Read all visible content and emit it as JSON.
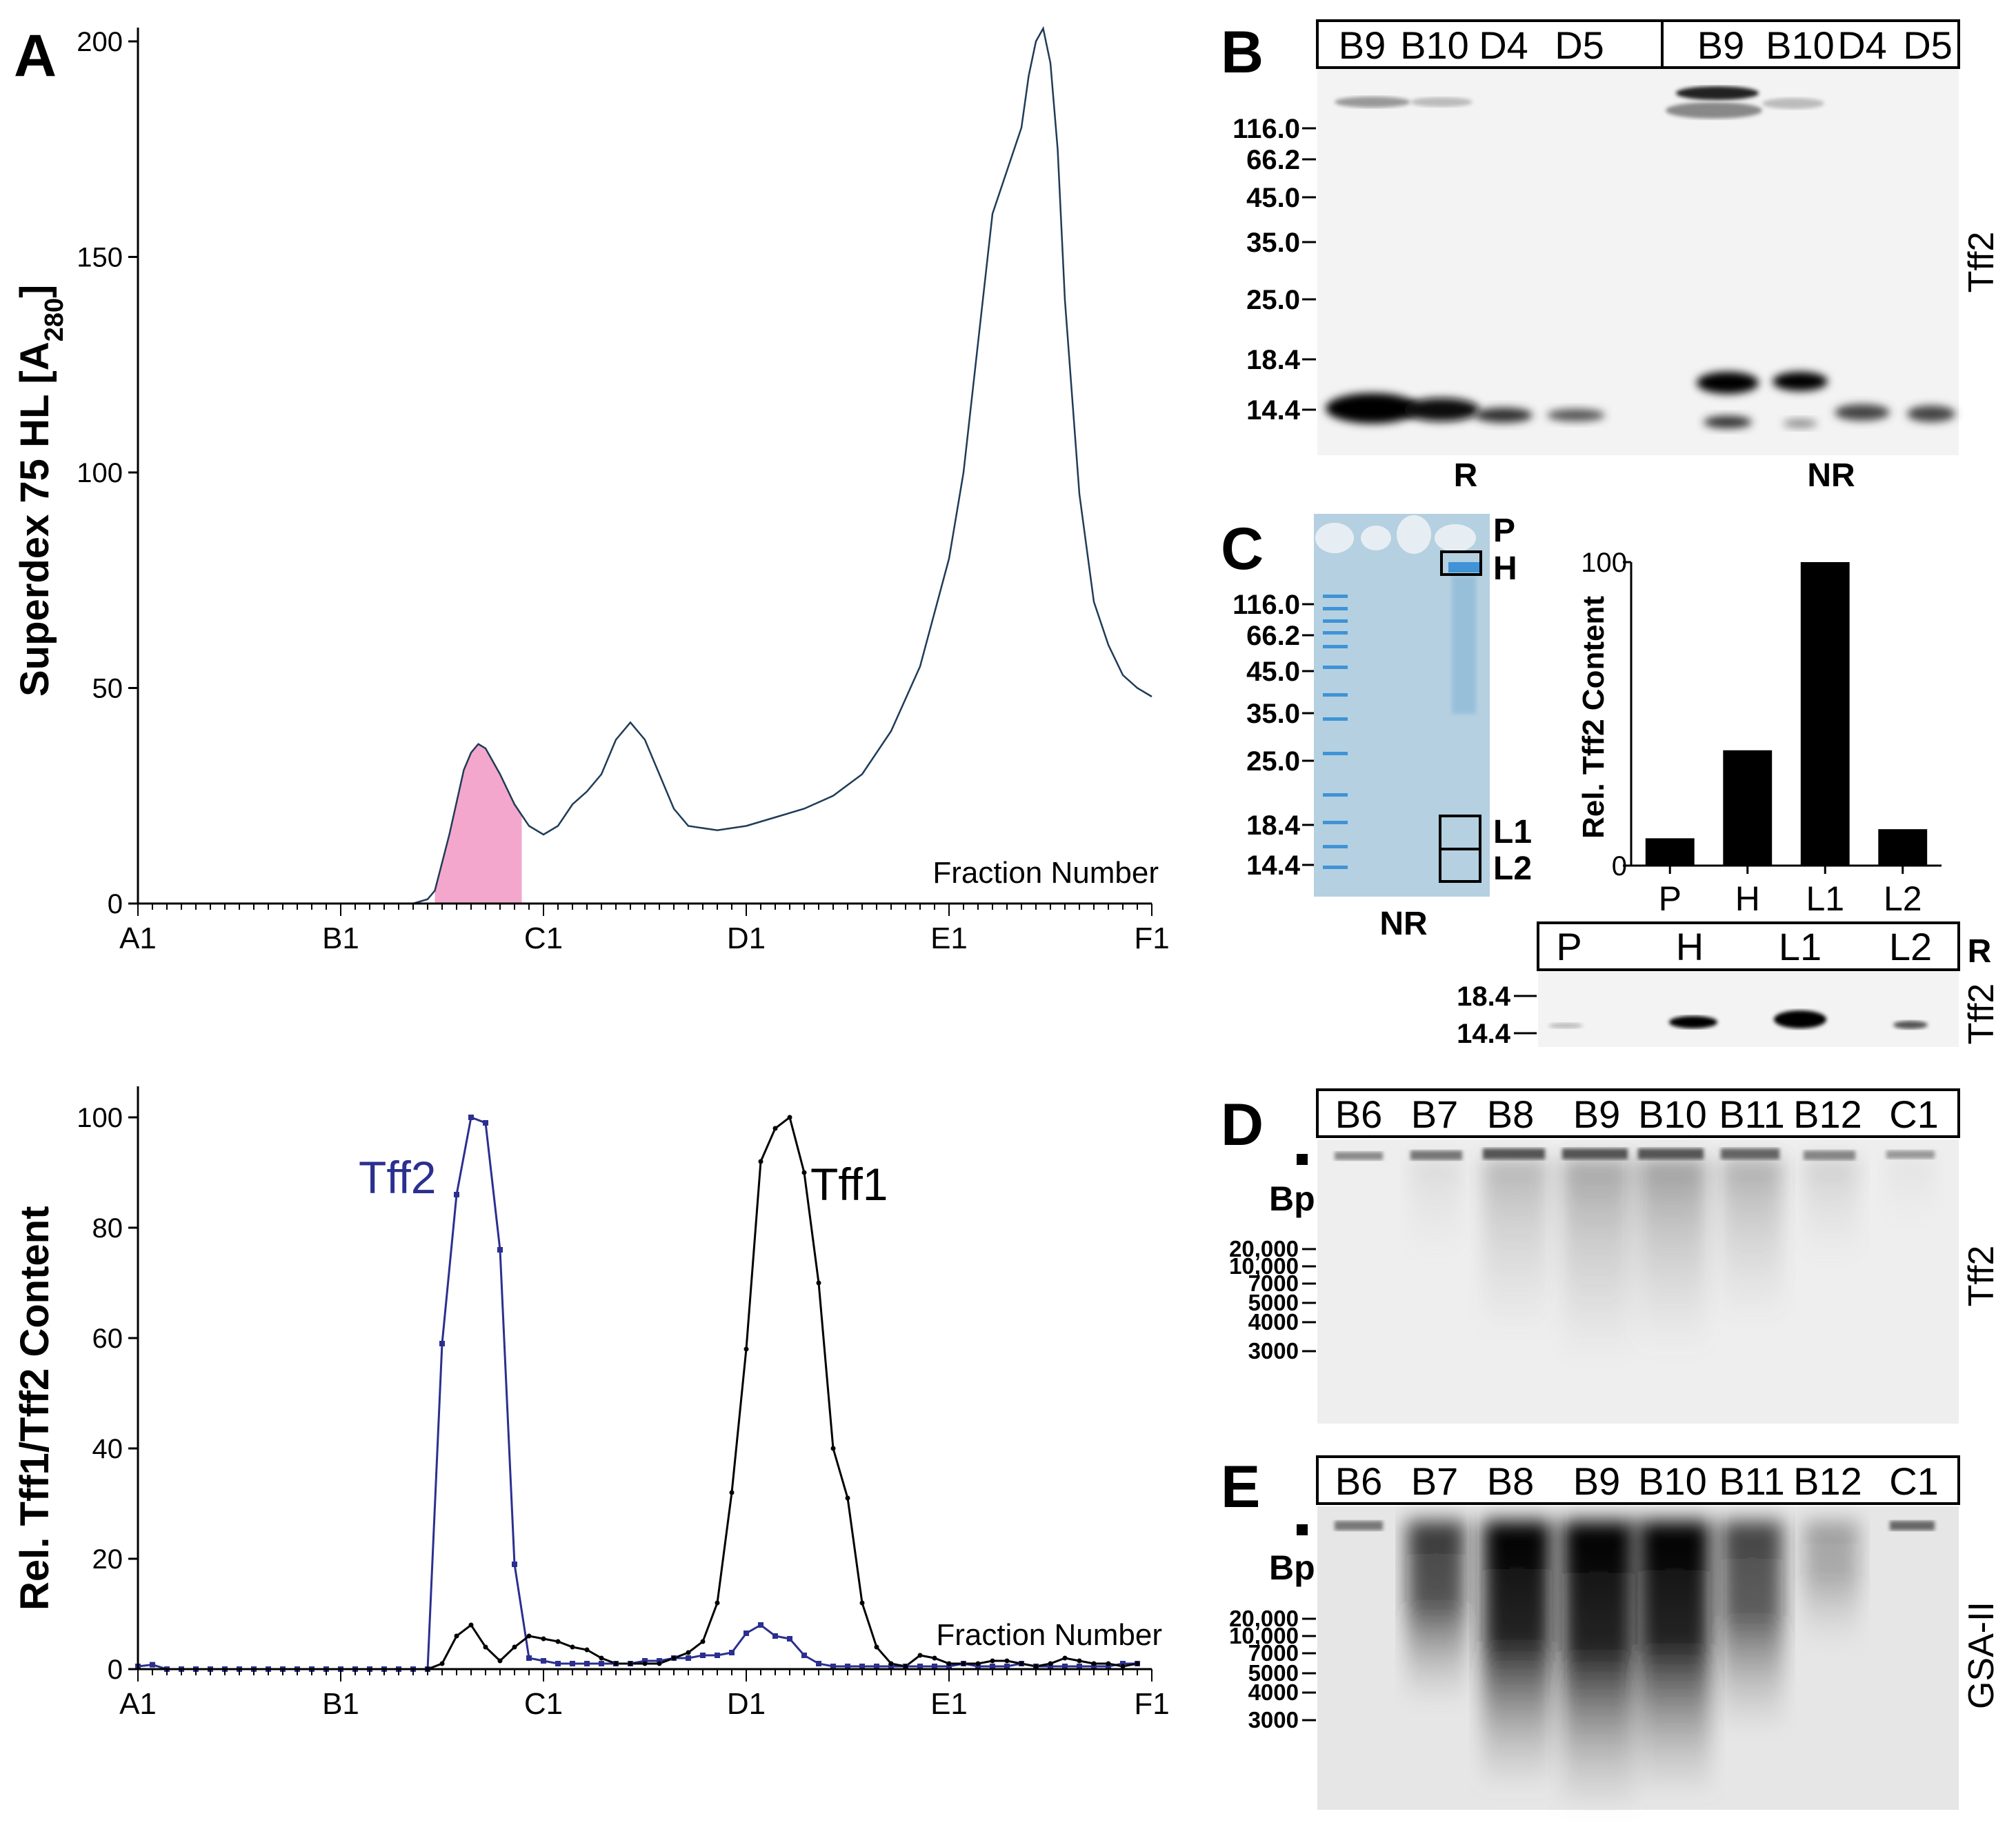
{
  "panel_labels": {
    "a": "A",
    "b": "B",
    "c": "C",
    "d": "D",
    "e": "E"
  },
  "colors": {
    "profile_line": "#1f3b57",
    "shaded": "#f4a7cc",
    "tff2": "#2b2f8f",
    "tff1": "#000000"
  },
  "chart_data": [
    {
      "type": "area",
      "panel": "A-top",
      "title": "",
      "xlabel": "Fraction Number",
      "ylabel": "Superdex 75 HL [A",
      "ylabel_sub": "280",
      "ylabel_end": "]",
      "x_domain": [
        0,
        70
      ],
      "ylim": [
        0,
        200
      ],
      "yticks": [
        "0",
        "50",
        "100",
        "150",
        "200"
      ],
      "xticks": [
        {
          "pos": 0,
          "label": "A1"
        },
        {
          "pos": 14,
          "label": "B1"
        },
        {
          "pos": 28,
          "label": "C1"
        },
        {
          "pos": 42,
          "label": "D1"
        },
        {
          "pos": 56,
          "label": "E1"
        },
        {
          "pos": 70,
          "label": "F1"
        }
      ],
      "shaded_range": [
        20.5,
        26.5
      ],
      "x": [
        0,
        19,
        20,
        20.5,
        21.5,
        22.5,
        23,
        23.5,
        24,
        25,
        26,
        27,
        28,
        29,
        30,
        31,
        32,
        33,
        34,
        35,
        36,
        37,
        38,
        40,
        42,
        44,
        46,
        48,
        50,
        52,
        54,
        56,
        57,
        58,
        59,
        60,
        61,
        61.5,
        62,
        62.5,
        63,
        63.5,
        64,
        65,
        66,
        67,
        68,
        69,
        70
      ],
      "values": [
        0,
        0,
        1,
        3,
        16,
        31,
        35,
        37,
        36,
        30,
        23,
        18,
        16,
        18,
        23,
        26,
        30,
        38,
        42,
        38,
        30,
        22,
        18,
        17,
        18,
        20,
        22,
        25,
        30,
        40,
        55,
        80,
        100,
        130,
        160,
        170,
        180,
        192,
        200,
        203,
        195,
        175,
        140,
        95,
        70,
        60,
        53,
        50,
        48
      ]
    },
    {
      "type": "line",
      "panel": "A-bottom",
      "title": "",
      "xlabel": "Fraction Number",
      "ylabel": "Rel. Tff1/Tff2 Content",
      "x_domain": [
        0,
        70
      ],
      "ylim": [
        0,
        100
      ],
      "yticks": [
        "0",
        "20",
        "40",
        "60",
        "80",
        "100"
      ],
      "xticks": [
        {
          "pos": 0,
          "label": "A1"
        },
        {
          "pos": 14,
          "label": "B1"
        },
        {
          "pos": 28,
          "label": "C1"
        },
        {
          "pos": 42,
          "label": "D1"
        },
        {
          "pos": 56,
          "label": "E1"
        },
        {
          "pos": 70,
          "label": "F1"
        }
      ],
      "series": [
        {
          "name": "Tff2",
          "x": [
            0,
            1,
            2,
            3,
            4,
            5,
            6,
            7,
            8,
            9,
            10,
            11,
            12,
            13,
            14,
            15,
            16,
            17,
            18,
            19,
            20,
            21,
            22,
            23,
            24,
            25,
            26,
            27,
            28,
            29,
            30,
            31,
            32,
            33,
            34,
            35,
            36,
            37,
            38,
            39,
            40,
            41,
            42,
            43,
            44,
            45,
            46,
            47,
            48,
            49,
            50,
            51,
            52,
            53,
            54,
            55,
            56,
            57,
            58,
            59,
            60,
            61,
            62,
            63,
            64,
            65,
            66,
            67,
            68,
            69
          ],
          "values": [
            0.5,
            0.8,
            0,
            0,
            0,
            0,
            0,
            0,
            0,
            0,
            0,
            0,
            0,
            0,
            0,
            0,
            0,
            0,
            0,
            0,
            0,
            59,
            86,
            100,
            99,
            76,
            19,
            2,
            1.5,
            1,
            1,
            1,
            1,
            1,
            1,
            1.5,
            1.5,
            2,
            2,
            2.5,
            2.5,
            3,
            6.5,
            8,
            6,
            5.5,
            2.5,
            1,
            0.5,
            0.5,
            0.5,
            0.5,
            0.5,
            0.5,
            0.5,
            0.5,
            0.5,
            1,
            0.5,
            0.5,
            0.5,
            1,
            0.5,
            0.5,
            0.5,
            0.5,
            0.5,
            0.5,
            1,
            1
          ]
        },
        {
          "name": "Tff1",
          "x": [
            20,
            21,
            22,
            23,
            24,
            25,
            26,
            27,
            28,
            29,
            30,
            31,
            32,
            33,
            34,
            35,
            36,
            37,
            38,
            39,
            40,
            41,
            42,
            43,
            44,
            45,
            46,
            47,
            48,
            49,
            50,
            51,
            52,
            53,
            54,
            55,
            56,
            57,
            58,
            59,
            60,
            61,
            62,
            63,
            64,
            65,
            66,
            67,
            68,
            69
          ],
          "values": [
            0,
            1,
            6,
            8,
            4,
            1.5,
            4,
            6,
            5.5,
            5,
            4,
            3.5,
            2,
            1,
            1,
            1,
            1,
            2,
            3,
            5,
            12,
            32,
            58,
            92,
            98,
            100,
            90,
            70,
            40,
            31,
            12,
            4,
            1,
            0.5,
            2.5,
            2,
            1,
            1,
            1,
            1.5,
            1.5,
            1,
            0.5,
            1,
            2,
            1.5,
            1,
            1,
            0.5,
            1
          ]
        }
      ]
    },
    {
      "type": "bar",
      "panel": "C",
      "title": "",
      "xlabel": "",
      "ylabel": "Rel. Tff2 Content",
      "categories": [
        "P",
        "H",
        "L1",
        "L2"
      ],
      "values": [
        9,
        38,
        100,
        12
      ],
      "ylim": [
        0,
        100
      ],
      "yticks": [
        "0",
        "100"
      ]
    }
  ],
  "panel_b": {
    "lanes_reduced": [
      "B9",
      "B10",
      "D4",
      "D5"
    ],
    "lanes_nonreduced": [
      "B9",
      "B10",
      "D4",
      "D5"
    ],
    "markers": [
      "116.0",
      "66.2",
      "45.0",
      "35.0",
      "25.0",
      "18.4",
      "14.4"
    ],
    "bottom_r": "R",
    "bottom_nr": "NR",
    "side_label": "Tff2"
  },
  "panel_c": {
    "markers": [
      "116.0",
      "66.2",
      "45.0",
      "35.0",
      "25.0",
      "18.4",
      "14.4"
    ],
    "gel_labels": [
      "P",
      "H",
      "L1",
      "L2"
    ],
    "gel_bottom": "NR",
    "blot_lanes": [
      "P",
      "H",
      "L1",
      "L2"
    ],
    "blot_condition": "R",
    "blot_markers": [
      "18.4",
      "14.4"
    ],
    "blot_side_label": "Tff2"
  },
  "panel_d": {
    "lanes": [
      "B6",
      "B7",
      "B8",
      "B9",
      "B10",
      "B11",
      "B12",
      "C1"
    ],
    "unit": "Bp",
    "markers": [
      "20,000",
      "10,000",
      "7000",
      "5000",
      "4000",
      "3000"
    ],
    "side_label": "Tff2"
  },
  "panel_e": {
    "lanes": [
      "B6",
      "B7",
      "B8",
      "B9",
      "B10",
      "B11",
      "B12",
      "C1"
    ],
    "unit": "Bp",
    "markers": [
      "20,000",
      "10,000",
      "7000",
      "5000",
      "4000",
      "3000"
    ],
    "side_label": "GSA-II"
  }
}
